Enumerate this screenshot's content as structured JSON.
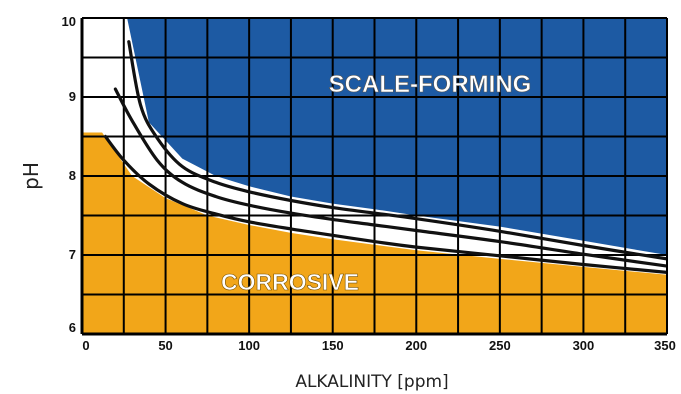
{
  "chart_data": {
    "type": "area",
    "title": "",
    "xlabel": "ALKALINITY [ppm]",
    "ylabel": "pH",
    "xlim": [
      0,
      350
    ],
    "ylim": [
      6,
      10
    ],
    "x_ticks": [
      "0",
      "50",
      "100",
      "150",
      "200",
      "250",
      "300",
      "350"
    ],
    "y_ticks": [
      "6",
      "7",
      "8",
      "9",
      "10"
    ],
    "grid": true,
    "regions": [
      {
        "label": "SCALE-FORMING",
        "color": "#1d5aa3"
      },
      {
        "label": "CORROSIVE",
        "color": "#f2a619"
      }
    ],
    "scale_boundary": {
      "x": [
        27,
        40,
        60,
        80,
        100,
        125,
        150,
        175,
        200,
        250,
        300,
        350
      ],
      "y": [
        10.0,
        8.68,
        8.22,
        8.0,
        7.87,
        7.74,
        7.65,
        7.58,
        7.5,
        7.36,
        7.18,
        7.0
      ]
    },
    "corrosive_boundary": {
      "x": [
        0,
        12,
        30,
        50,
        75,
        100,
        125,
        150,
        175,
        200,
        250,
        300,
        350
      ],
      "y": [
        8.55,
        8.55,
        8.0,
        7.72,
        7.5,
        7.38,
        7.28,
        7.2,
        7.13,
        7.06,
        6.95,
        6.85,
        6.75
      ]
    },
    "series": [
      {
        "x": [
          28,
          35,
          45,
          60,
          80,
          100,
          125,
          150,
          175,
          200,
          250,
          300,
          350
        ],
        "y": [
          9.7,
          8.9,
          8.48,
          8.12,
          7.92,
          7.8,
          7.69,
          7.6,
          7.53,
          7.46,
          7.3,
          7.12,
          6.95
        ]
      },
      {
        "x": [
          20,
          30,
          45,
          60,
          80,
          100,
          125,
          150,
          175,
          200,
          250,
          300,
          350
        ],
        "y": [
          9.1,
          8.7,
          8.2,
          7.92,
          7.74,
          7.63,
          7.53,
          7.45,
          7.38,
          7.31,
          7.17,
          7.01,
          6.86
        ]
      },
      {
        "x": [
          14,
          25,
          40,
          60,
          80,
          100,
          125,
          150,
          175,
          200,
          250,
          300,
          350
        ],
        "y": [
          8.5,
          8.2,
          7.9,
          7.65,
          7.52,
          7.42,
          7.33,
          7.25,
          7.17,
          7.1,
          6.99,
          6.88,
          6.78
        ]
      }
    ]
  }
}
